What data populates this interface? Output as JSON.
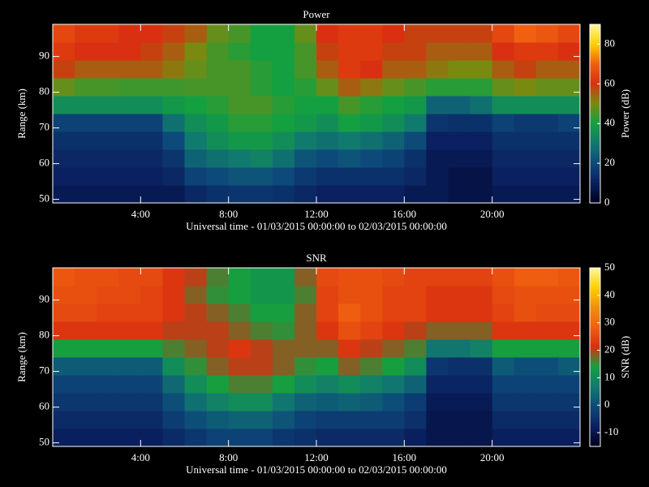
{
  "chart_data": [
    {
      "type": "heatmap",
      "title": "Power",
      "xlabel": "Universal time - 01/03/2015 00:00:00 to 02/03/2015 00:00:00",
      "ylabel": "Range (km)",
      "colorbar_label": "Power (dB)",
      "colormap": [
        "#000020",
        "#0a2060",
        "#0d4a7a",
        "#117a6e",
        "#14a040",
        "#7a8a10",
        "#d83010",
        "#f06010",
        "#ffd000",
        "#fff8a0"
      ],
      "xlim": [
        0,
        24
      ],
      "xticks": [
        {
          "value": 4,
          "label": "4:00"
        },
        {
          "value": 8,
          "label": "8:00"
        },
        {
          "value": 12,
          "label": "12:00"
        },
        {
          "value": 16,
          "label": "16:00"
        },
        {
          "value": 20,
          "label": "20:00"
        }
      ],
      "ylim": [
        49,
        99
      ],
      "yticks": [
        50,
        60,
        70,
        80,
        90
      ],
      "clim": [
        0,
        90
      ],
      "cticks": [
        0,
        20,
        40,
        60,
        80
      ],
      "x": [
        0.5,
        1.5,
        2.5,
        3.5,
        4.5,
        5.5,
        6.5,
        7.5,
        8.5,
        9.5,
        10.5,
        11.5,
        12.5,
        13.5,
        14.5,
        15.5,
        16.5,
        17.5,
        18.5,
        19.5,
        20.5,
        21.5,
        22.5,
        23.5
      ],
      "y": [
        51.5,
        56.5,
        61.5,
        66.5,
        71.5,
        76.5,
        81.5,
        86.5,
        91.5,
        96.5
      ],
      "values": [
        [
          8,
          8,
          8,
          8,
          8,
          8,
          12,
          14,
          15,
          15,
          14,
          12,
          10,
          10,
          10,
          10,
          8,
          8,
          6,
          6,
          8,
          8,
          8,
          8
        ],
        [
          10,
          10,
          10,
          10,
          10,
          12,
          18,
          20,
          22,
          22,
          20,
          16,
          14,
          14,
          14,
          14,
          12,
          8,
          6,
          6,
          10,
          10,
          10,
          10
        ],
        [
          12,
          12,
          12,
          12,
          12,
          15,
          25,
          28,
          30,
          32,
          28,
          22,
          20,
          22,
          20,
          18,
          14,
          8,
          8,
          8,
          12,
          12,
          12,
          12
        ],
        [
          14,
          14,
          14,
          14,
          14,
          20,
          30,
          35,
          38,
          38,
          35,
          30,
          28,
          30,
          28,
          25,
          20,
          10,
          10,
          10,
          14,
          14,
          14,
          14
        ],
        [
          18,
          18,
          18,
          18,
          18,
          28,
          35,
          38,
          42,
          42,
          40,
          38,
          35,
          40,
          38,
          35,
          30,
          15,
          14,
          14,
          18,
          16,
          16,
          18
        ],
        [
          35,
          35,
          35,
          35,
          35,
          38,
          40,
          42,
          45,
          45,
          42,
          40,
          40,
          45,
          42,
          40,
          38,
          25,
          25,
          28,
          35,
          35,
          35,
          35
        ],
        [
          48,
          45,
          45,
          44,
          44,
          44,
          45,
          45,
          45,
          42,
          40,
          42,
          48,
          55,
          52,
          48,
          45,
          42,
          42,
          42,
          48,
          50,
          48,
          48
        ],
        [
          58,
          55,
          55,
          55,
          55,
          52,
          48,
          45,
          45,
          42,
          40,
          45,
          55,
          62,
          60,
          55,
          55,
          52,
          50,
          50,
          55,
          58,
          55,
          55
        ],
        [
          62,
          60,
          60,
          60,
          58,
          55,
          50,
          45,
          42,
          40,
          40,
          45,
          58,
          62,
          62,
          58,
          58,
          55,
          55,
          55,
          60,
          62,
          62,
          60
        ],
        [
          65,
          62,
          62,
          60,
          60,
          58,
          55,
          48,
          45,
          40,
          40,
          48,
          60,
          62,
          62,
          60,
          58,
          58,
          58,
          58,
          65,
          70,
          68,
          65
        ]
      ]
    },
    {
      "type": "heatmap",
      "title": "SNR",
      "xlabel": "Universal time - 01/03/2015 00:00:00 to 02/03/2015 00:00:00",
      "ylabel": "Range (km)",
      "colorbar_label": "SNR (dB)",
      "colormap": [
        "#000020",
        "#0a2060",
        "#0d4a7a",
        "#117a6e",
        "#14a040",
        "#d83010",
        "#f06010",
        "#f09010",
        "#ffd000",
        "#fff8a0"
      ],
      "xlim": [
        0,
        24
      ],
      "xticks": [
        {
          "value": 4,
          "label": "4:00"
        },
        {
          "value": 8,
          "label": "8:00"
        },
        {
          "value": 12,
          "label": "12:00"
        },
        {
          "value": 16,
          "label": "16:00"
        },
        {
          "value": 20,
          "label": "20:00"
        }
      ],
      "ylim": [
        49,
        99
      ],
      "yticks": [
        50,
        60,
        70,
        80,
        90
      ],
      "clim": [
        -15,
        50
      ],
      "cticks": [
        -10,
        0,
        10,
        20,
        30,
        40,
        50
      ],
      "x": [
        0.5,
        1.5,
        2.5,
        3.5,
        4.5,
        5.5,
        6.5,
        7.5,
        8.5,
        9.5,
        10.5,
        11.5,
        12.5,
        13.5,
        14.5,
        15.5,
        16.5,
        17.5,
        18.5,
        19.5,
        20.5,
        21.5,
        22.5,
        23.5
      ],
      "y": [
        51.5,
        56.5,
        61.5,
        66.5,
        71.5,
        76.5,
        81.5,
        86.5,
        91.5,
        96.5
      ],
      "values": [
        [
          -8,
          -8,
          -8,
          -8,
          -8,
          -6,
          -4,
          -2,
          -2,
          -2,
          -4,
          -5,
          -6,
          -6,
          -6,
          -6,
          -8,
          -10,
          -10,
          -10,
          -8,
          -8,
          -8,
          -8
        ],
        [
          -6,
          -6,
          -6,
          -6,
          -6,
          -3,
          0,
          2,
          3,
          3,
          1,
          -2,
          -3,
          -3,
          -3,
          -3,
          -5,
          -10,
          -10,
          -10,
          -6,
          -6,
          -6,
          -6
        ],
        [
          -4,
          -4,
          -4,
          -4,
          -4,
          0,
          5,
          8,
          10,
          10,
          6,
          3,
          2,
          3,
          2,
          0,
          -3,
          -9,
          -9,
          -9,
          -4,
          -4,
          -4,
          -4
        ],
        [
          -2,
          -2,
          -2,
          -2,
          -2,
          4,
          10,
          14,
          16,
          16,
          14,
          10,
          8,
          10,
          8,
          6,
          3,
          -7,
          -7,
          -7,
          -2,
          -2,
          -2,
          -2
        ],
        [
          2,
          2,
          2,
          2,
          2,
          10,
          15,
          18,
          20,
          20,
          18,
          15,
          14,
          18,
          16,
          14,
          10,
          -4,
          -5,
          -5,
          2,
          0,
          0,
          2
        ],
        [
          14,
          14,
          14,
          14,
          14,
          16,
          18,
          20,
          22,
          20,
          18,
          18,
          18,
          22,
          20,
          18,
          16,
          6,
          6,
          8,
          14,
          14,
          14,
          14
        ],
        [
          22,
          22,
          22,
          22,
          22,
          20,
          20,
          20,
          18,
          16,
          15,
          18,
          22,
          26,
          24,
          22,
          20,
          18,
          18,
          18,
          22,
          22,
          22,
          22
        ],
        [
          25,
          25,
          24,
          24,
          24,
          22,
          20,
          18,
          16,
          14,
          14,
          18,
          24,
          28,
          26,
          24,
          24,
          22,
          22,
          22,
          24,
          26,
          25,
          25
        ],
        [
          26,
          26,
          25,
          25,
          24,
          22,
          18,
          15,
          14,
          12,
          12,
          16,
          24,
          26,
          26,
          24,
          24,
          22,
          22,
          22,
          25,
          26,
          26,
          26
        ],
        [
          27,
          26,
          26,
          25,
          25,
          22,
          20,
          16,
          14,
          12,
          12,
          18,
          25,
          26,
          26,
          25,
          24,
          24,
          24,
          24,
          26,
          28,
          28,
          27
        ]
      ]
    }
  ]
}
